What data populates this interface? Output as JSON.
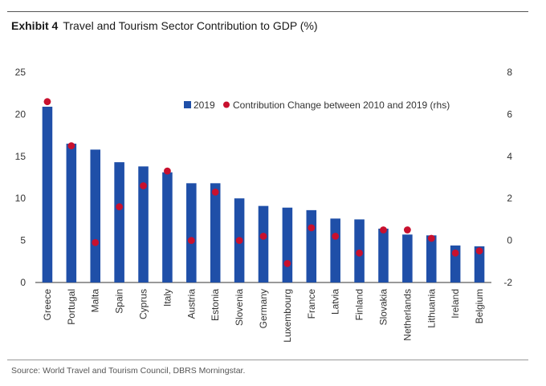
{
  "header": {
    "exhibit": "Exhibit 4",
    "title": "Travel and Tourism Sector Contribution to GDP (%)"
  },
  "footer": {
    "source": "Source: World Travel and Tourism Council, DBRS Morningstar."
  },
  "colors": {
    "bar": "#1f4fa8",
    "dot": "#c8102e"
  },
  "chart_data": {
    "type": "bar",
    "title": "Travel and Tourism Sector Contribution to GDP (%)",
    "categories": [
      "Greece",
      "Portugal",
      "Malta",
      "Spain",
      "Cyprus",
      "Italy",
      "Austria",
      "Estonia",
      "Slovenia",
      "Germany",
      "Luxembourg",
      "France",
      "Latvia",
      "Finland",
      "Slovakia",
      "Netherlands",
      "Lithuania",
      "Ireland",
      "Belgium"
    ],
    "series": [
      {
        "name": "2019",
        "type": "bar",
        "axis": "left",
        "values": [
          20.9,
          16.5,
          15.8,
          14.3,
          13.8,
          13.1,
          11.8,
          11.8,
          10.0,
          9.1,
          8.9,
          8.6,
          7.6,
          7.5,
          6.4,
          5.7,
          5.6,
          4.4,
          4.3
        ]
      },
      {
        "name": "Contribution Change between 2010 and 2019 (rhs)",
        "type": "scatter",
        "axis": "right",
        "values": [
          6.6,
          4.5,
          -0.1,
          1.6,
          2.6,
          3.3,
          0.0,
          2.3,
          0.0,
          0.2,
          -1.1,
          0.6,
          0.2,
          -0.6,
          0.5,
          0.5,
          0.1,
          -0.6,
          -0.5
        ]
      }
    ],
    "ylim_left": [
      0,
      25
    ],
    "yticks_left": [
      "0",
      "5",
      "10",
      "15",
      "20",
      "25"
    ],
    "ylim_right": [
      -2,
      8
    ],
    "yticks_right": [
      "-2",
      "0",
      "2",
      "4",
      "6",
      "8"
    ],
    "legend_position": "top-center",
    "grid": false
  }
}
